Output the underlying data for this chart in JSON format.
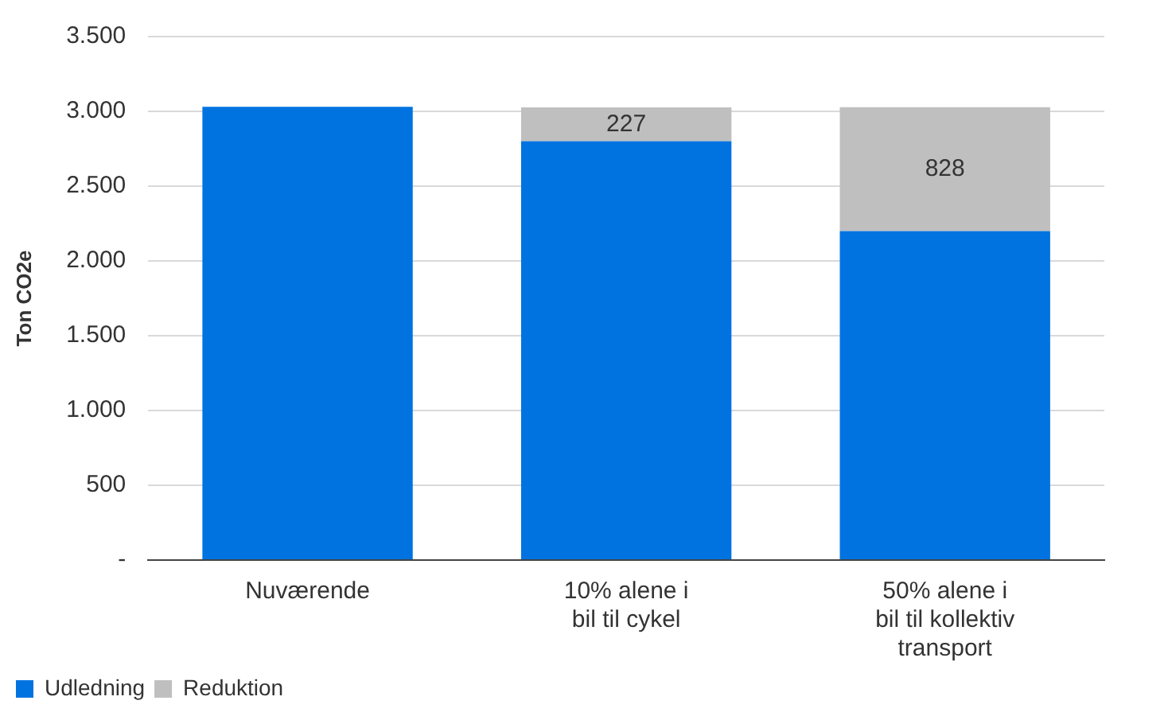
{
  "chart_data": {
    "type": "bar",
    "stacked": true,
    "ylabel": "Ton CO2e",
    "categories": [
      "Nuværende",
      "10% alene i\nbil til cykel",
      "50% alene i\nbil til kollektiv\ntransport"
    ],
    "series": [
      {
        "name": "Udledning",
        "color": "#0073e0",
        "values": [
          3030,
          2800,
          2200
        ],
        "value_labels": [
          null,
          null,
          null
        ]
      },
      {
        "name": "Reduktion",
        "color": "#bfbfbf",
        "values": [
          0,
          227,
          828
        ],
        "value_labels": [
          null,
          "227",
          "828"
        ]
      }
    ],
    "ylim": [
      0,
      3500
    ],
    "yticks": [
      {
        "value": 0,
        "label": "-"
      },
      {
        "value": 500,
        "label": "500"
      },
      {
        "value": 1000,
        "label": "1.000"
      },
      {
        "value": 1500,
        "label": "1.500"
      },
      {
        "value": 2000,
        "label": "2.000"
      },
      {
        "value": 2500,
        "label": "2.500"
      },
      {
        "value": 3000,
        "label": "3.000"
      },
      {
        "value": 3500,
        "label": "3.500"
      }
    ],
    "grid": "y",
    "legend": "bottom left"
  }
}
